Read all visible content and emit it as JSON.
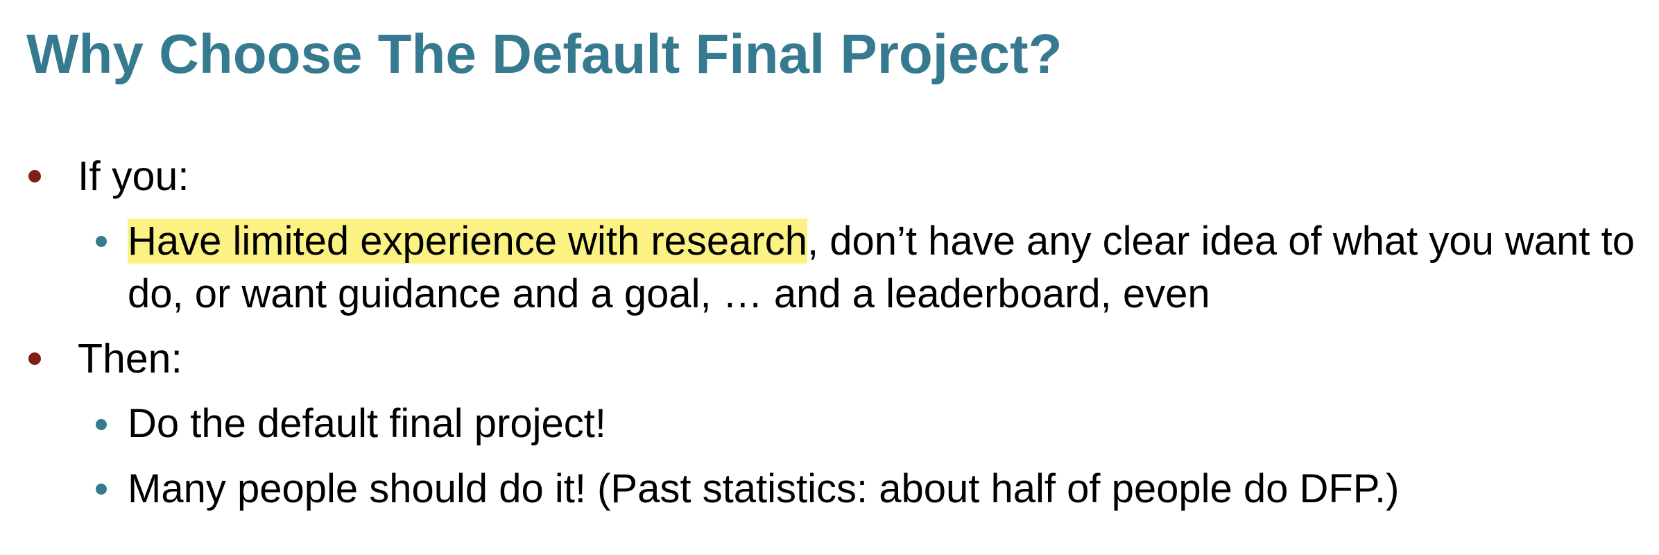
{
  "slide": {
    "title": "Why Choose The Default Final Project?",
    "colors": {
      "title": "#357a8e",
      "level1_bullet": "#7f1f18",
      "level2_bullet": "#357a8e",
      "highlight": "#fcf283",
      "text": "#000000"
    },
    "bullets": [
      {
        "text": "If you:",
        "sub": [
          {
            "highlighted": "Have limited experience with research",
            "rest": ", don’t have any clear idea of what you want to do, or want guidance and a goal, … and a leaderboard, even"
          }
        ]
      },
      {
        "text": "Then:",
        "sub": [
          {
            "text": "Do the default final project!"
          },
          {
            "text": "Many people should do it! (Past statistics: about half of people do DFP.)"
          }
        ]
      }
    ]
  }
}
